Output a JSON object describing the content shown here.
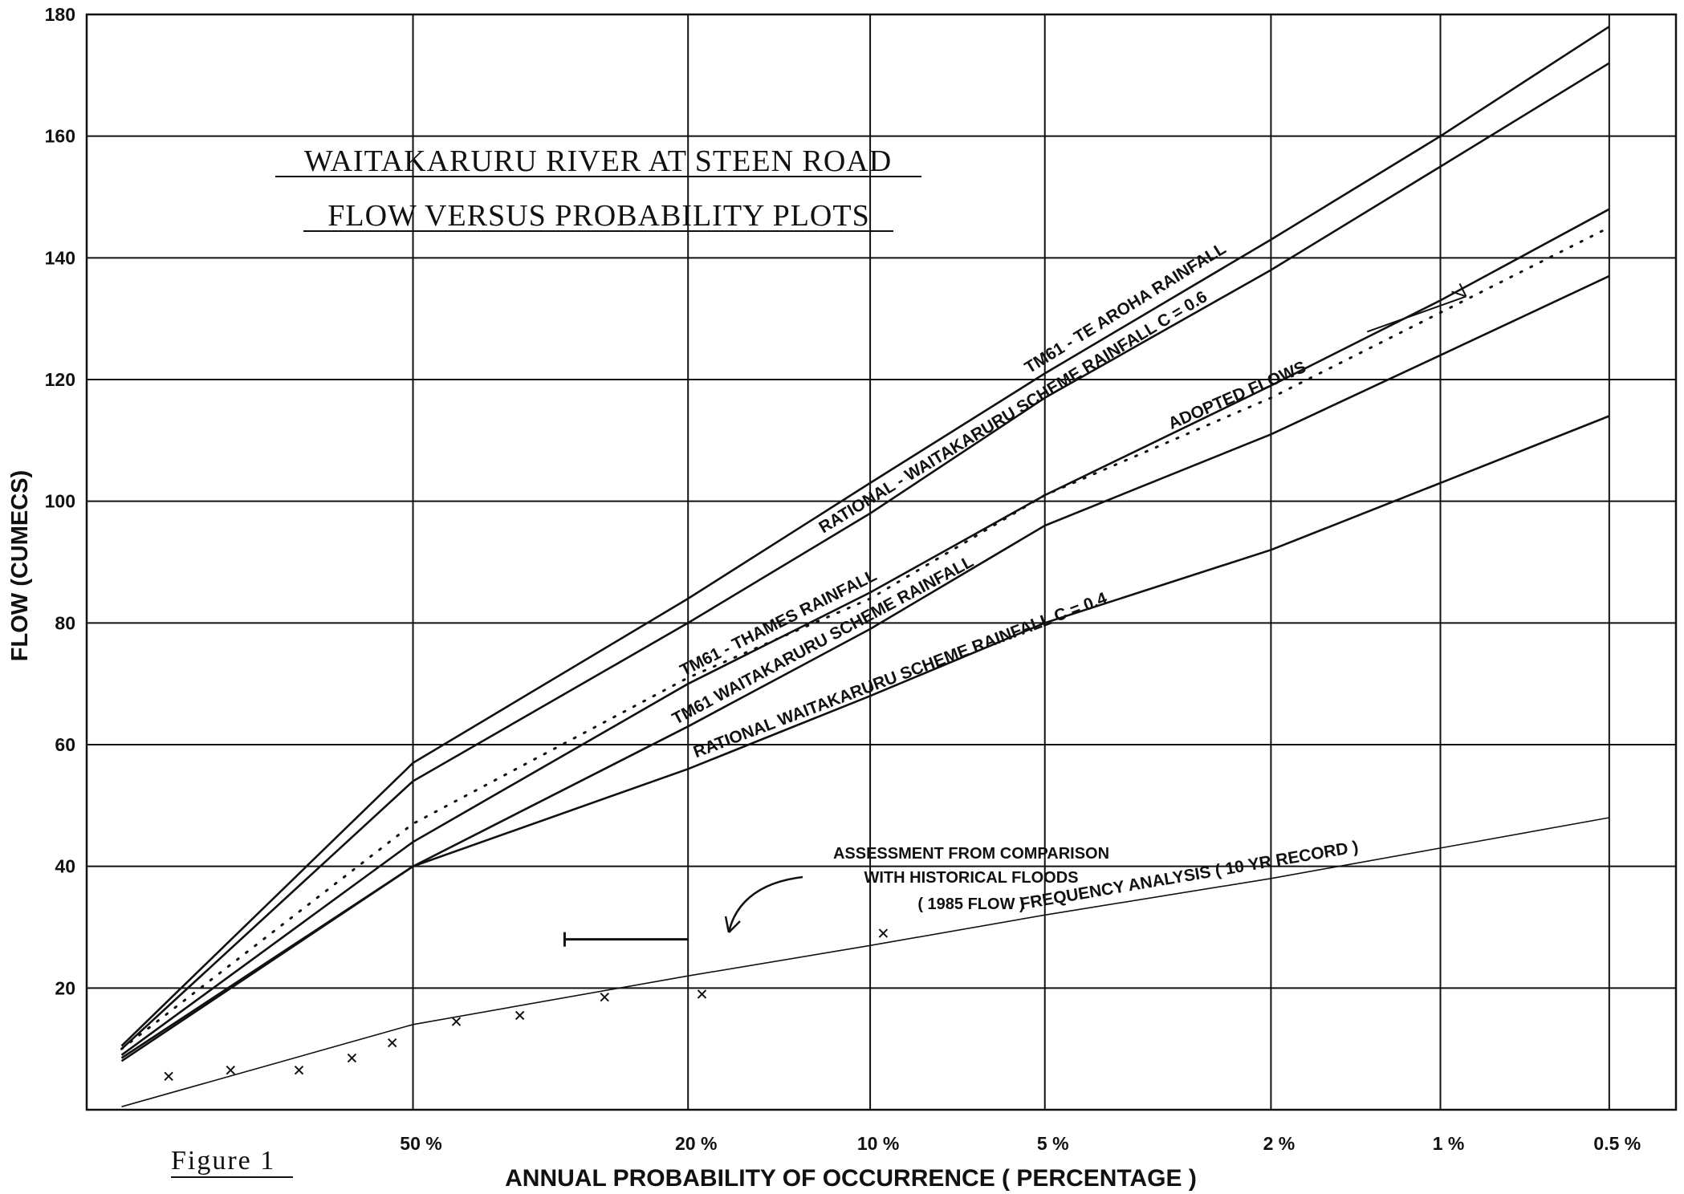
{
  "chart_data": {
    "type": "line",
    "title": "WAITAKARURU RIVER AT STEEN ROAD",
    "subtitle": "FLOW VERSUS PROBABILITY PLOTS",
    "ylabel": "FLOW (CUMECS)",
    "xlabel": "ANNUAL PROBABILITY OF OCCURRENCE ( PERCENTAGE )",
    "figure_label": "Figure 1",
    "ylim": [
      0,
      180
    ],
    "y_ticks": [
      20,
      40,
      60,
      80,
      100,
      120,
      140,
      160,
      180
    ],
    "x_scale": "extreme-value probability, % annual exceedance",
    "x_ticks": [
      "50 %",
      "20 %",
      "10 %",
      "5 %",
      "2 %",
      "1 %",
      "0.5 %"
    ],
    "x_tick_values": [
      50,
      20,
      10,
      5,
      2,
      1,
      0.5
    ],
    "grid": true,
    "series": [
      {
        "name": "TM61 - TE AROHA RAINFALL",
        "style": "solid",
        "points": [
          [
            90,
            10.5
          ],
          [
            50,
            57
          ],
          [
            20,
            84
          ],
          [
            10,
            103
          ],
          [
            5,
            121
          ],
          [
            2,
            143
          ],
          [
            1,
            160
          ],
          [
            0.5,
            178
          ]
        ]
      },
      {
        "name": "RATIONAL - WAITAKARURU SCHEME RAINFALL C = 0.6",
        "style": "solid",
        "points": [
          [
            90,
            10
          ],
          [
            50,
            54
          ],
          [
            20,
            80
          ],
          [
            10,
            98
          ],
          [
            5,
            117
          ],
          [
            2,
            138
          ],
          [
            1,
            155
          ],
          [
            0.5,
            172
          ]
        ]
      },
      {
        "name": "TM61 - THAMES RAINFALL",
        "style": "solid",
        "points": [
          [
            90,
            9
          ],
          [
            50,
            44
          ],
          [
            20,
            70
          ],
          [
            10,
            85
          ],
          [
            5,
            101
          ],
          [
            2,
            119
          ],
          [
            1,
            133
          ],
          [
            0.5,
            148
          ]
        ]
      },
      {
        "name": "ADOPTED FLOWS",
        "style": "dotted",
        "points": [
          [
            90,
            10
          ],
          [
            50,
            47
          ],
          [
            20,
            71
          ],
          [
            10,
            84
          ],
          [
            5,
            101
          ],
          [
            2,
            117
          ],
          [
            1,
            131
          ],
          [
            0.5,
            145
          ]
        ]
      },
      {
        "name": "TM61 WAITAKARURU SCHEME RAINFALL",
        "style": "solid",
        "points": [
          [
            90,
            8.5
          ],
          [
            50,
            40
          ],
          [
            20,
            63
          ],
          [
            10,
            79
          ],
          [
            5,
            96
          ],
          [
            2,
            111
          ],
          [
            1,
            124
          ],
          [
            0.5,
            137
          ]
        ]
      },
      {
        "name": "RATIONAL WAITAKARURU SCHEME RAINFALL C = 0.4",
        "style": "solid",
        "points": [
          [
            90,
            8
          ],
          [
            50,
            40
          ],
          [
            20,
            56
          ],
          [
            10,
            68
          ],
          [
            5,
            80
          ],
          [
            2,
            92
          ],
          [
            1,
            103
          ],
          [
            0.5,
            114
          ]
        ]
      },
      {
        "name": "FREQUENCY ANALYSIS ( 10 YR RECORD )",
        "style": "thin",
        "points": [
          [
            90,
            0.5
          ],
          [
            50,
            14
          ],
          [
            20,
            22
          ],
          [
            10,
            27
          ],
          [
            5,
            32
          ],
          [
            2,
            38
          ],
          [
            1,
            43
          ],
          [
            0.5,
            48
          ]
        ]
      }
    ],
    "observations": {
      "name": "",
      "marker": "x",
      "points": [
        [
          85,
          5.5
        ],
        [
          77,
          6.5
        ],
        [
          67,
          6.5
        ],
        [
          59,
          8.5
        ],
        [
          53,
          11
        ],
        [
          44,
          14.5
        ],
        [
          36,
          15.5
        ],
        [
          27,
          18.5
        ],
        [
          19,
          19
        ],
        [
          9.5,
          29
        ]
      ]
    },
    "assessment_bar": {
      "value": 28,
      "x_range": [
        31,
        20
      ]
    },
    "annotations": [
      "ASSESSMENT FROM COMPARISON",
      "WITH HISTORICAL FLOODS",
      "( 1985 FLOW )"
    ]
  }
}
